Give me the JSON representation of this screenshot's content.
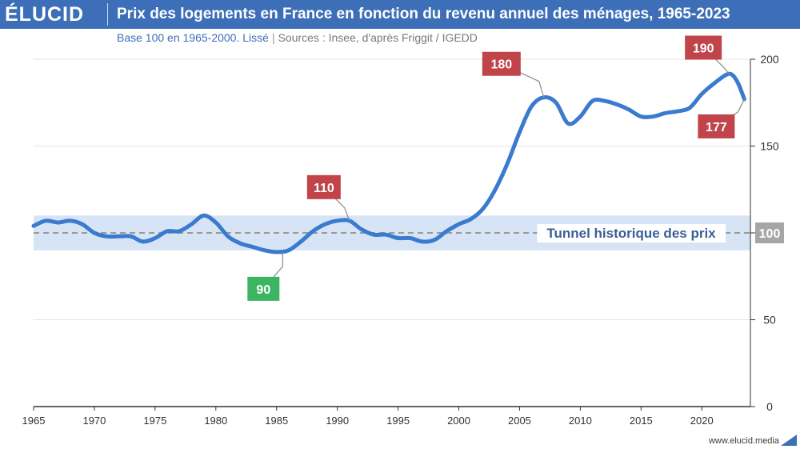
{
  "header": {
    "logo": "ÉLUCID",
    "title": "Prix des logements en France en fonction du revenu annuel des ménages, 1965-2023"
  },
  "subtitle": {
    "base": "Base 100 en 1965-2000. Lissé",
    "separator": "|",
    "sources": "Sources : Insee, d'après Friggit / IGEDD"
  },
  "footer": {
    "url": "www.elucid.media"
  },
  "colors": {
    "header": "#3d6fb8",
    "line": "#3a7bd0",
    "tunnel_band": "#d6e4f5",
    "tunnel_label": "#3a5f94",
    "reference_badge": "#a6a6a6",
    "high_badge": "#c0444a",
    "low_badge": "#3cb563",
    "grid": "#e4e4e4"
  },
  "chart_data": {
    "type": "line",
    "title": "Prix des logements en France en fonction du revenu annuel des ménages, 1965-2023",
    "xlabel": "",
    "ylabel": "",
    "xlim": [
      1965,
      2024
    ],
    "ylim": [
      0,
      200
    ],
    "x_ticks": [
      1965,
      1970,
      1975,
      1980,
      1985,
      1990,
      1995,
      2000,
      2005,
      2010,
      2015,
      2020
    ],
    "y_ticks": [
      0,
      50,
      100,
      150,
      200
    ],
    "y_axis_side": "right",
    "grid": true,
    "series": [
      {
        "name": "",
        "x": [
          1965,
          1966,
          1967,
          1968,
          1969,
          1970,
          1971,
          1972,
          1973,
          1974,
          1975,
          1976,
          1977,
          1978,
          1979,
          1980,
          1981,
          1982,
          1983,
          1984,
          1985,
          1986,
          1987,
          1988,
          1989,
          1990,
          1991,
          1992,
          1993,
          1994,
          1995,
          1996,
          1997,
          1998,
          1999,
          2000,
          2001,
          2002,
          2003,
          2004,
          2005,
          2006,
          2007,
          2008,
          2009,
          2010,
          2011,
          2012,
          2013,
          2014,
          2015,
          2016,
          2017,
          2018,
          2019,
          2020,
          2021,
          2022,
          2022.5,
          2023,
          2023.5
        ],
        "y": [
          104,
          107,
          106,
          107,
          105,
          100,
          98,
          98,
          98,
          95,
          97,
          101,
          101,
          105,
          110,
          106,
          98,
          94,
          92,
          90,
          89,
          90,
          95,
          101,
          105,
          107,
          107,
          102,
          99,
          99,
          97,
          97,
          95,
          96,
          101,
          105,
          108,
          114,
          125,
          140,
          158,
          173,
          178,
          175,
          163,
          167,
          176,
          176,
          174,
          171,
          167,
          167,
          169,
          170,
          172,
          180,
          186,
          191,
          191,
          186,
          177
        ]
      }
    ],
    "reference_band": {
      "from": 90,
      "to": 110,
      "label": "Tunnel historique des prix"
    },
    "reference_line": {
      "value": 100,
      "label": "100"
    },
    "annotations": [
      {
        "x": 1991,
        "y": 107,
        "label": "110",
        "kind": "high"
      },
      {
        "x": 1985.5,
        "y": 89,
        "label": "90",
        "kind": "low"
      },
      {
        "x": 2007,
        "y": 178,
        "label": "180",
        "kind": "high"
      },
      {
        "x": 2022.3,
        "y": 191,
        "label": "190",
        "kind": "high"
      },
      {
        "x": 2023.5,
        "y": 177,
        "label": "177",
        "kind": "high"
      }
    ]
  }
}
